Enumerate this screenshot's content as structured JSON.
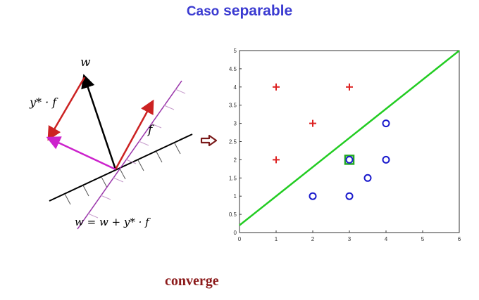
{
  "title": {
    "word1": "Caso",
    "word2": "separable",
    "color": "#3b3bd1"
  },
  "conclusion": {
    "text": "converge",
    "color": "#8b1a1a"
  },
  "diagram": {
    "label_w": "w",
    "label_ystar_f": "y* · f",
    "label_f": "f",
    "update_rule": "w = w + y* · f",
    "colors": {
      "w": "#000000",
      "f": "#cc2222",
      "result": "#cc22cc",
      "boundary_new": "#9933aa"
    }
  },
  "transition_arrow": {
    "color": "#7a1a1a"
  },
  "chart_data": {
    "type": "scatter",
    "xlim": [
      0,
      6
    ],
    "ylim": [
      0,
      5
    ],
    "x_ticks": [
      "0",
      "1",
      "2",
      "3",
      "4",
      "5",
      "6"
    ],
    "y_ticks": [
      "0",
      "0.5",
      "1",
      "1.5",
      "2",
      "2.5",
      "3",
      "3.5",
      "4",
      "4.5",
      "5"
    ],
    "grid": false,
    "series": [
      {
        "marker": "plus",
        "color": "#dd2222",
        "points": [
          [
            1,
            4
          ],
          [
            3,
            4
          ],
          [
            2,
            3
          ],
          [
            1,
            2
          ]
        ]
      },
      {
        "marker": "circle",
        "color": "#1a1acc",
        "points": [
          [
            4,
            3
          ],
          [
            3,
            2
          ],
          [
            4,
            2
          ],
          [
            3.5,
            1.5
          ],
          [
            2,
            1
          ],
          [
            3,
            1
          ]
        ]
      }
    ],
    "highlight": {
      "point": [
        3,
        2
      ],
      "color": "#22aa22"
    },
    "decision_line": {
      "from": [
        0,
        0.2
      ],
      "to": [
        6,
        5
      ],
      "color": "#22cc22"
    }
  }
}
